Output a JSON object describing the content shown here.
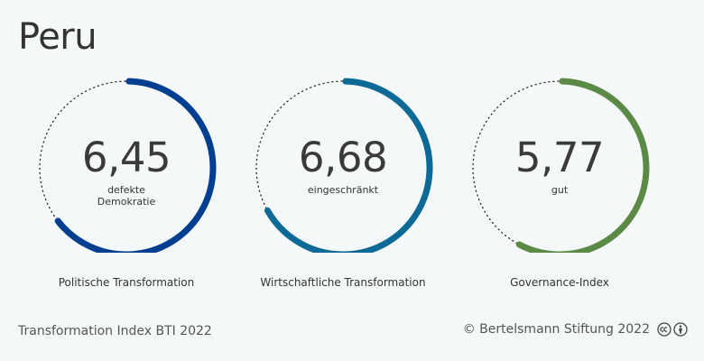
{
  "title": "Peru",
  "gauges": [
    {
      "value": "6,45",
      "score": 6.45,
      "max": 10,
      "rating": "defekte Demokratie",
      "label": "Politische Transformation",
      "color": "#003f8f"
    },
    {
      "value": "6,68",
      "score": 6.68,
      "max": 10,
      "rating": "eingeschränkt",
      "label": "Wirtschaftliche Transformation",
      "color": "#0d6a96"
    },
    {
      "value": "5,77",
      "score": 5.77,
      "max": 10,
      "rating": "gut",
      "label": "Governance-Index",
      "color": "#5b8a46"
    }
  ],
  "footer": {
    "source": "Transformation Index BTI 2022",
    "copyright": "© Bertelsmann Stiftung 2022"
  },
  "icons": [
    "cc-icon",
    "by-icon"
  ]
}
